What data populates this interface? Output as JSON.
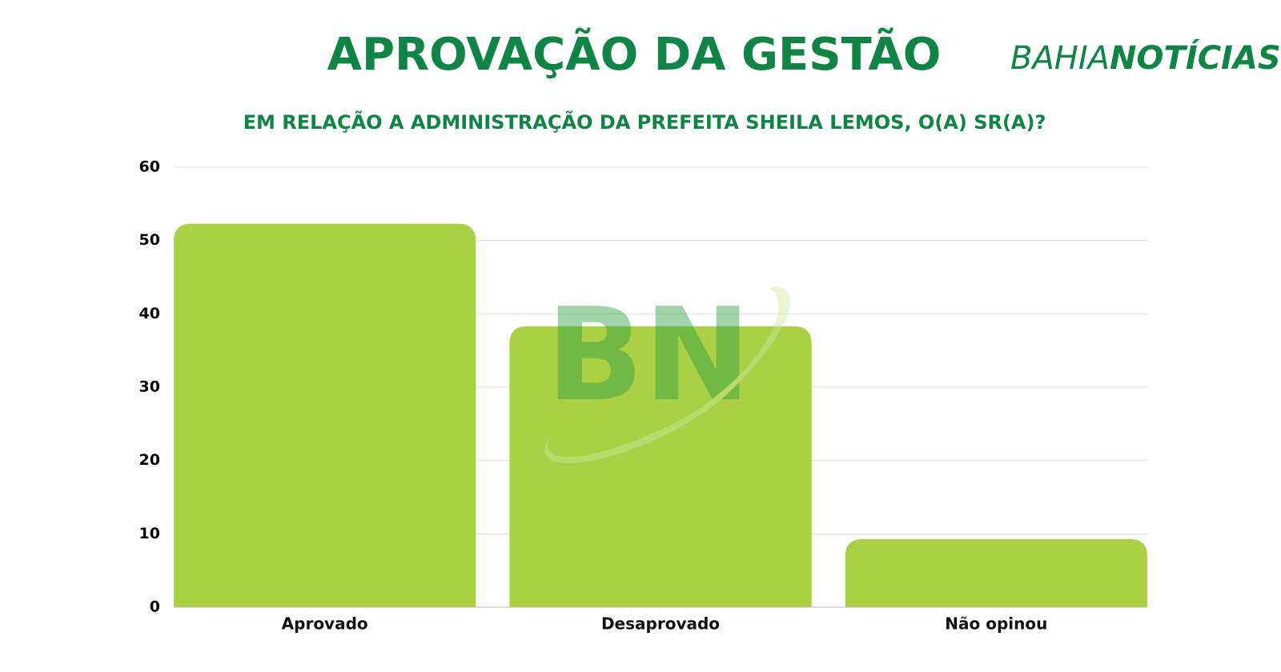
{
  "chart_data": {
    "type": "bar",
    "title": "APROVAÇÃO DA GESTÃO",
    "subtitle": "EM RELAÇÃO A ADMINISTRAÇÃO DA PREFEITA SHEILA LEMOS, O(A) SR(A)?",
    "categories": [
      "Aprovado",
      "Desaprovado",
      "Não opinou"
    ],
    "values": [
      52.3,
      38.3,
      9.3
    ],
    "color": "#aad046",
    "ylim": [
      0,
      60
    ],
    "yticks": [
      0,
      10,
      20,
      30,
      40,
      50,
      60
    ],
    "grid": true
  },
  "logo": {
    "left": "BAHIA",
    "right": "NOTÍCIAS"
  },
  "watermark": "BN"
}
